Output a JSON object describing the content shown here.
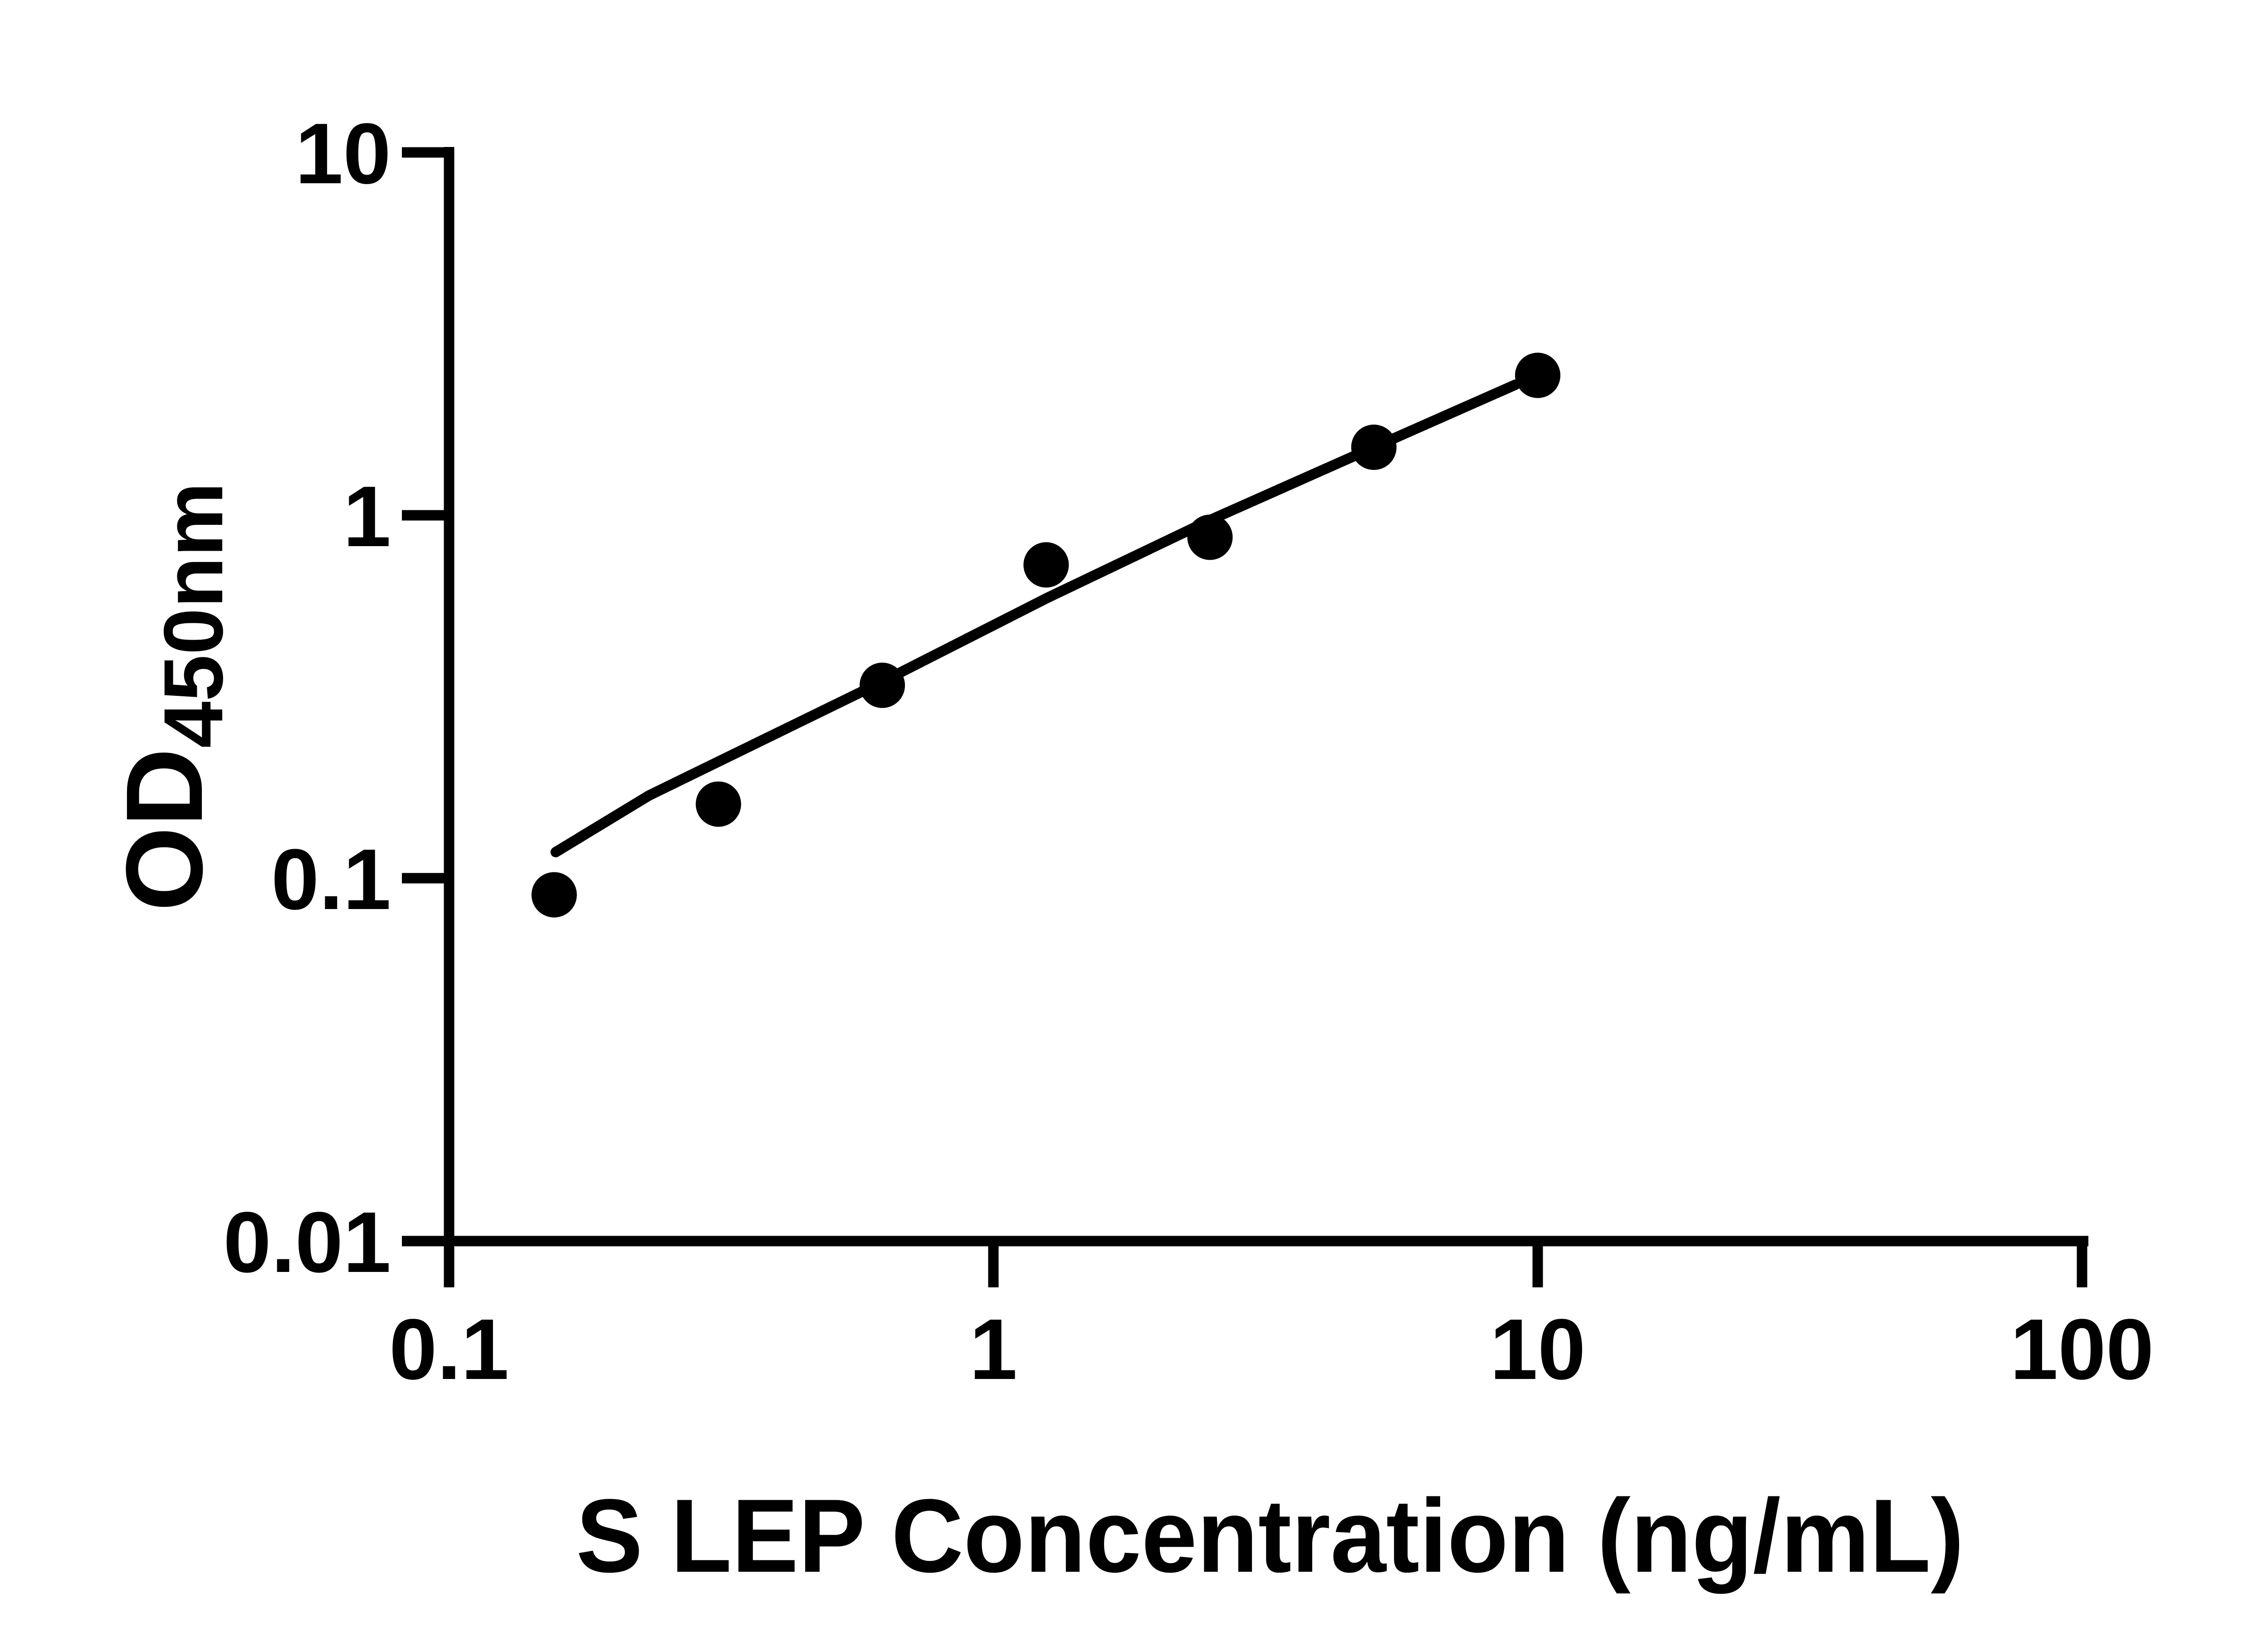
{
  "figure": {
    "background_color": "#ffffff",
    "ink_color": "#000000"
  },
  "chart_data": {
    "type": "scatter",
    "x_scale": "log",
    "y_scale": "log",
    "xlabel": "S LEP Concentration (ng/mL)",
    "ylabel_main": "OD",
    "ylabel_sub": "450nm",
    "xlim": [
      0.1,
      100
    ],
    "ylim": [
      0.01,
      10
    ],
    "grid": false,
    "legend": "none",
    "x_ticks": [
      {
        "label": "0.1",
        "value": 0.1
      },
      {
        "label": "1",
        "value": 1
      },
      {
        "label": "10",
        "value": 10
      },
      {
        "label": "100",
        "value": 100
      }
    ],
    "y_ticks": [
      {
        "label": "10",
        "value": 10
      },
      {
        "label": "1",
        "value": 1
      },
      {
        "label": "0.1",
        "value": 0.1
      },
      {
        "label": "0.01",
        "value": 0.01
      }
    ],
    "series": [
      {
        "name": "standard-points",
        "marker": "filled-circle",
        "marker_radius_px": 50,
        "color": "#000000",
        "points": [
          {
            "x": 0.156,
            "od": 0.09
          },
          {
            "x": 0.3125,
            "od": 0.16
          },
          {
            "x": 0.625,
            "od": 0.34
          },
          {
            "x": 1.25,
            "od": 0.73
          },
          {
            "x": 2.5,
            "od": 0.87
          },
          {
            "x": 5,
            "od": 1.54
          },
          {
            "x": 10,
            "od": 2.43
          }
        ]
      }
    ],
    "fit_curve": {
      "name": "fitted-standard-curve",
      "color": "#000000",
      "points": [
        {
          "x": 0.157,
          "od": 0.118
        },
        {
          "x": 0.233,
          "od": 0.169
        },
        {
          "x": 0.63,
          "od": 0.35
        },
        {
          "x": 1.25,
          "od": 0.59
        },
        {
          "x": 2.5,
          "od": 0.97
        },
        {
          "x": 5,
          "od": 1.54
        },
        {
          "x": 9.1,
          "od": 2.29
        }
      ]
    }
  }
}
